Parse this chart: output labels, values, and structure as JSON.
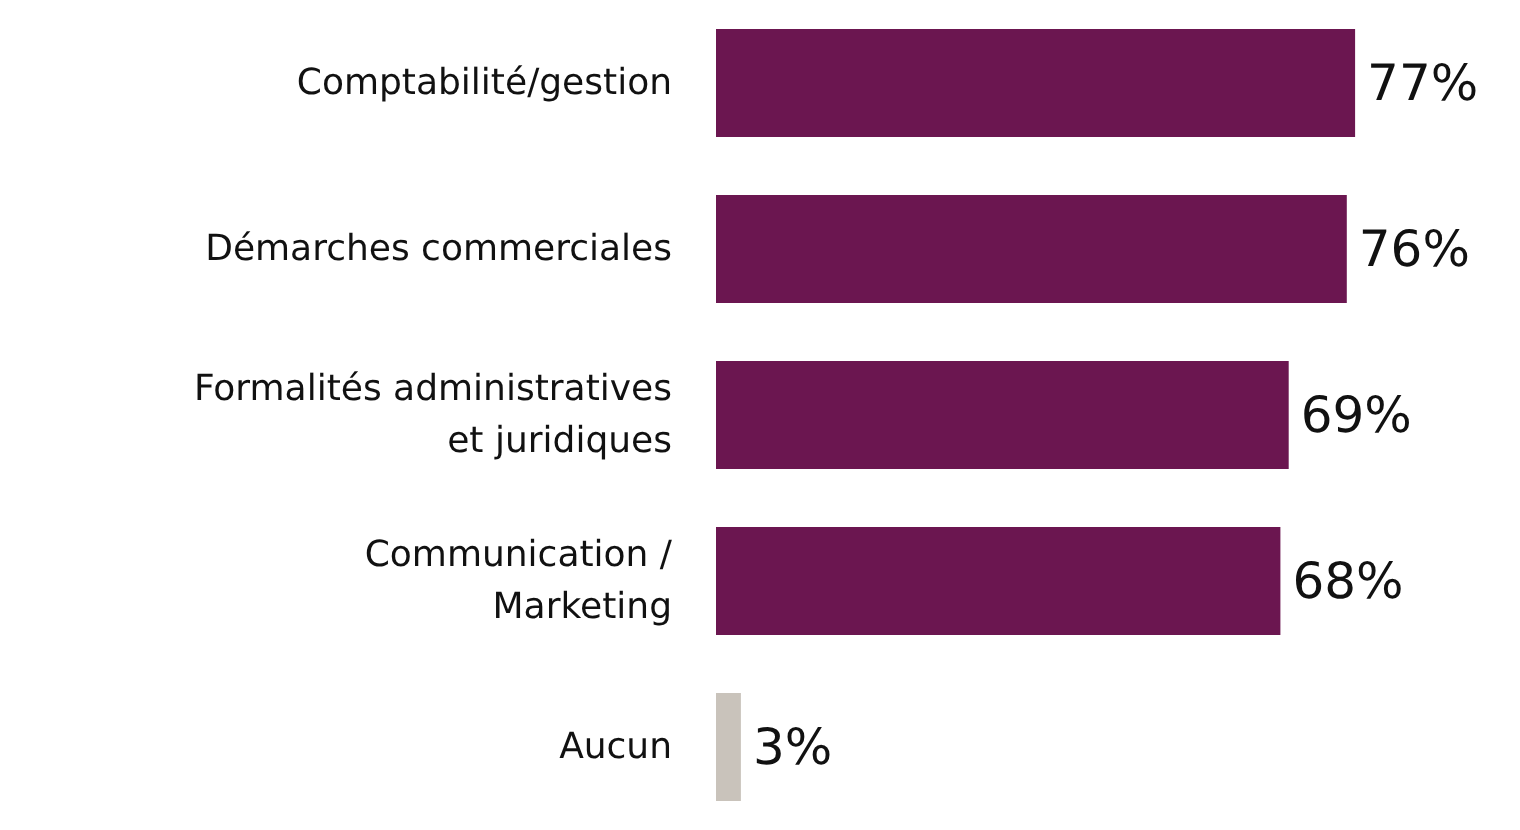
{
  "chart_data": {
    "type": "bar",
    "orientation": "horizontal",
    "categories": [
      "Comptabilité/gestion",
      "Démarches commerciales",
      "Formalités administratives\net juridiques",
      "Communication /\nMarketing",
      "Aucun"
    ],
    "values": [
      77,
      76,
      69,
      68,
      3
    ],
    "value_labels": [
      "77%",
      "76%",
      "69%",
      "68%",
      "3%"
    ],
    "colors": [
      "#6b1650",
      "#6b1650",
      "#6b1650",
      "#6b1650",
      "#c9c3bb"
    ]
  }
}
